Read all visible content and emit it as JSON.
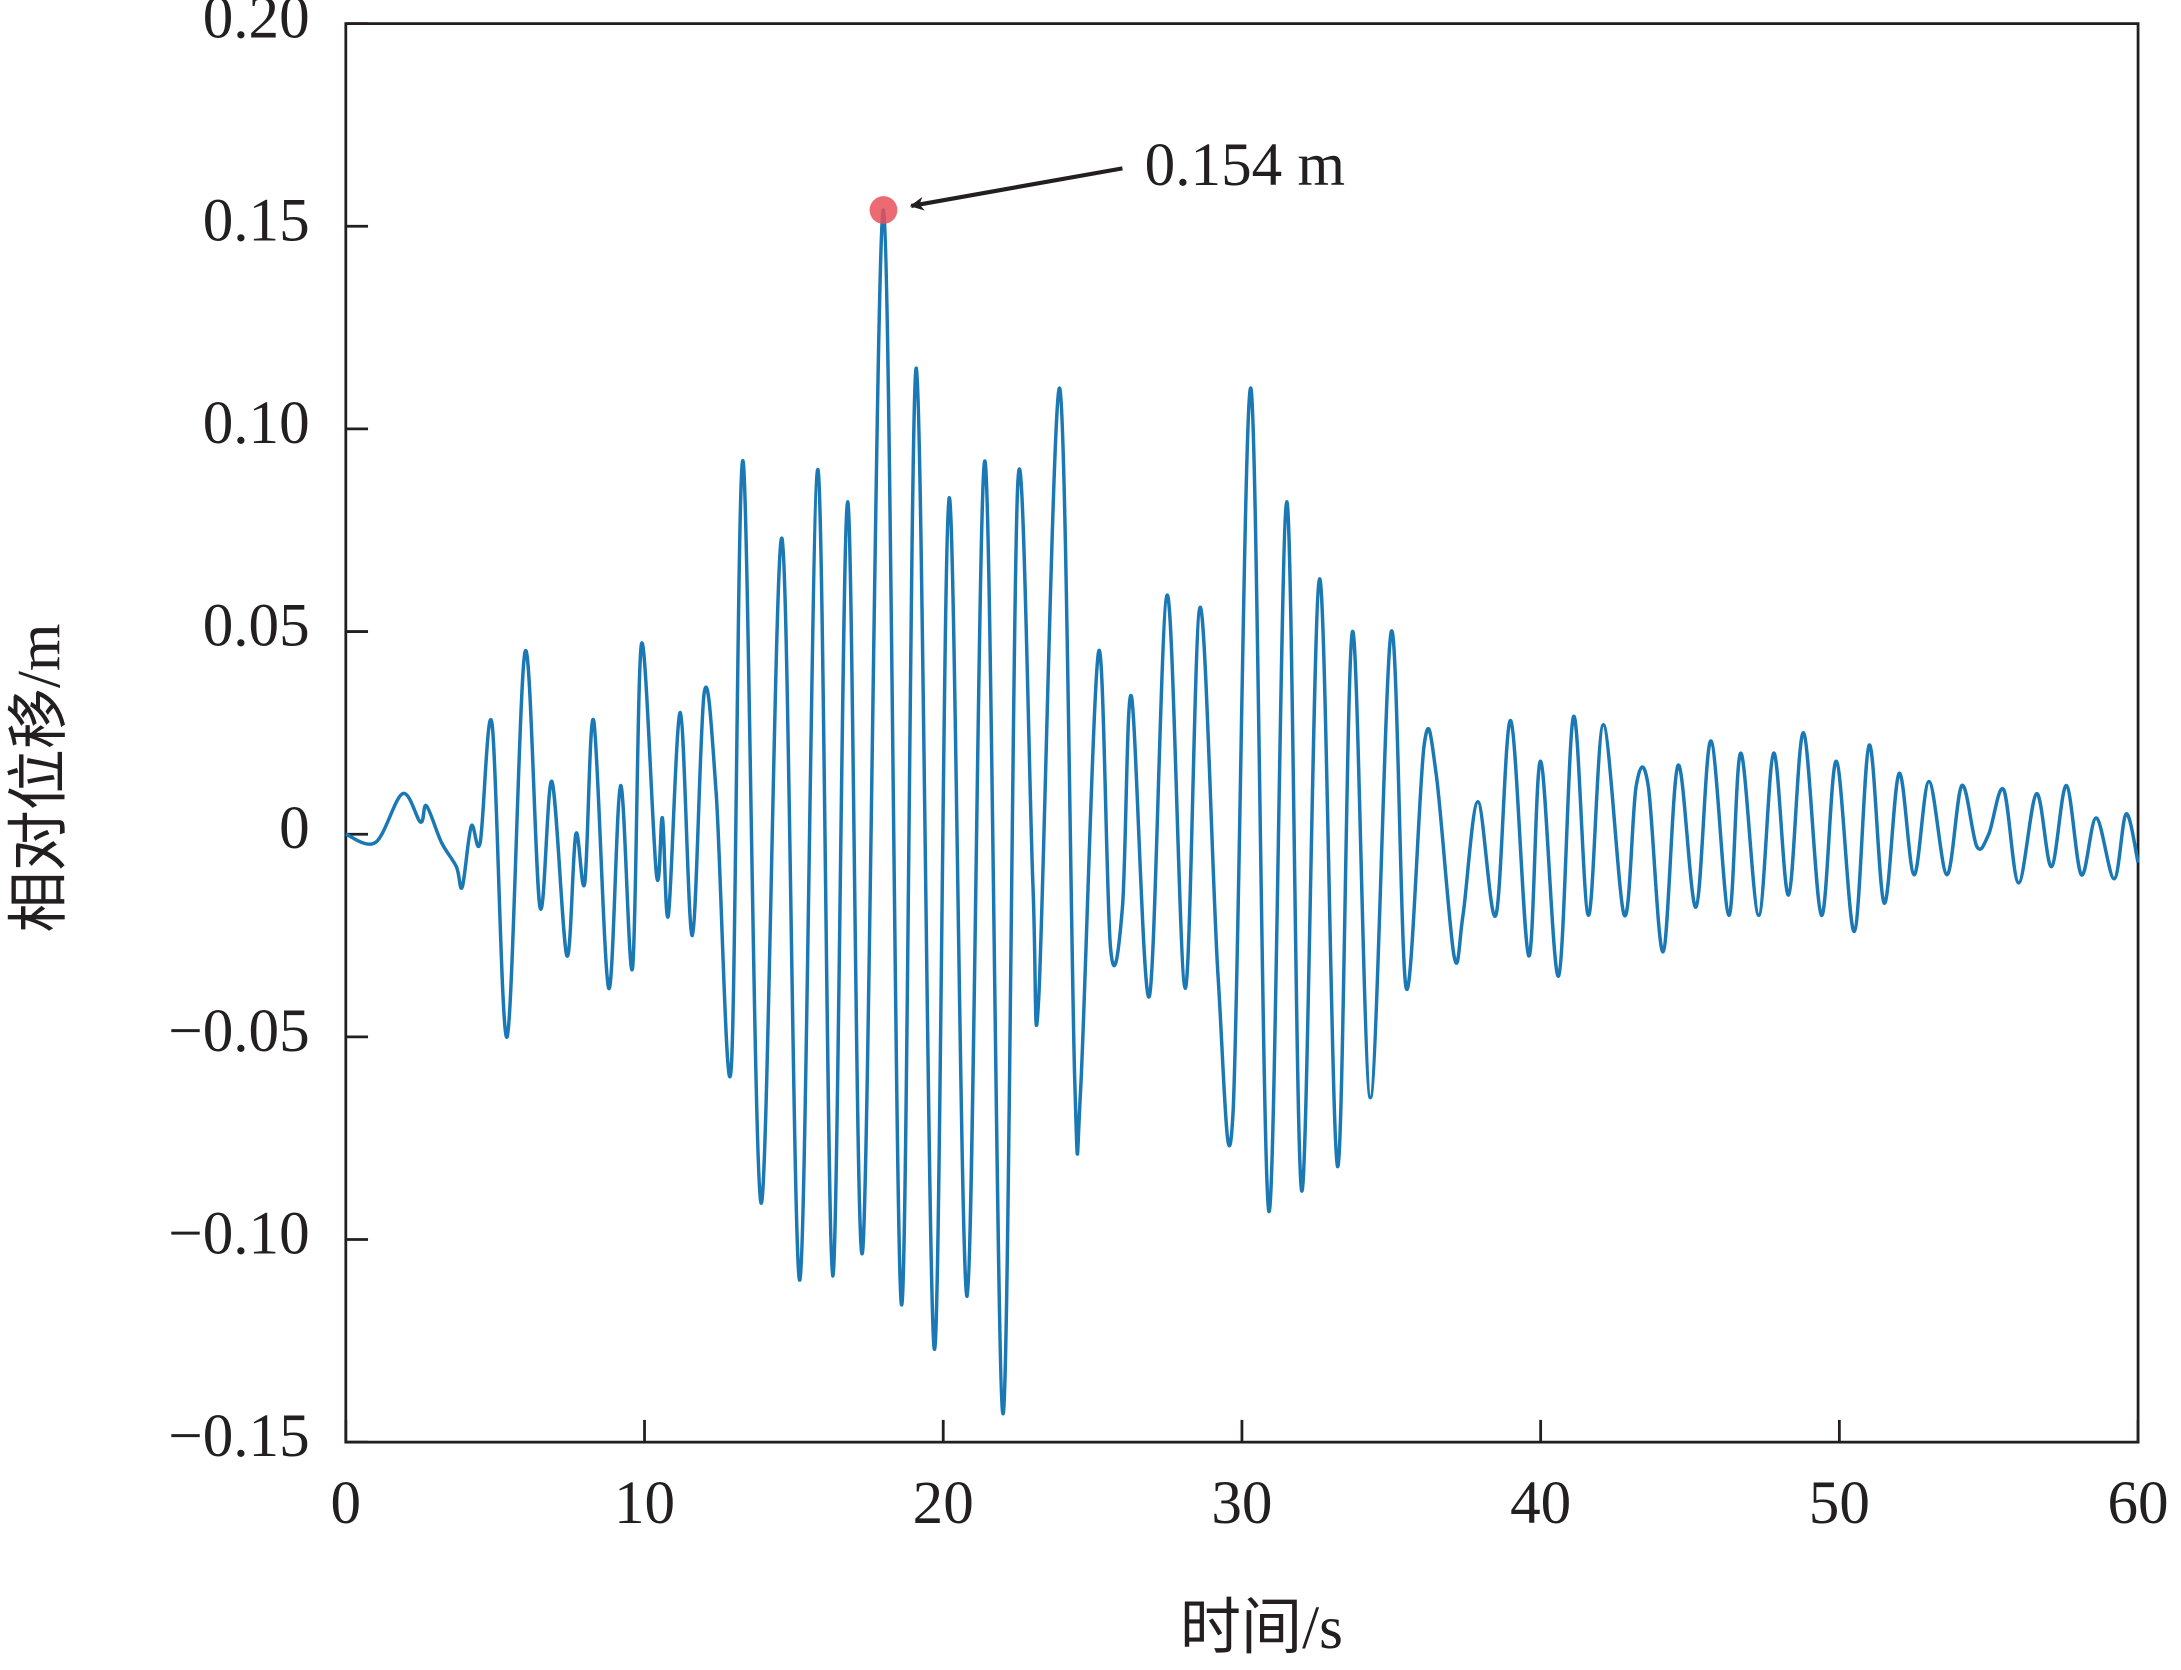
{
  "chart_data": {
    "type": "line",
    "xlabel": "时间/s",
    "ylabel": "相对位移/m",
    "xlim": [
      0,
      60
    ],
    "ylim": [
      -0.15,
      0.2
    ],
    "xticks": [
      0,
      10,
      20,
      30,
      40,
      50,
      60
    ],
    "yticks": [
      {
        "value": -0.15,
        "label": "−0.15"
      },
      {
        "value": -0.1,
        "label": "−0.10"
      },
      {
        "value": -0.05,
        "label": "−0.05"
      },
      0,
      0.05,
      {
        "value": 0.1,
        "label": "0.10"
      },
      0.15,
      {
        "value": 0.2,
        "label": "0.20"
      }
    ],
    "annotations": [
      {
        "text": "0.154 m",
        "x": 18.0,
        "y": 0.154,
        "color": "#e8505b"
      }
    ],
    "x": [
      0,
      1.0,
      1.9,
      2.5,
      2.7,
      3.2,
      3.7,
      3.9,
      4.2,
      4.5,
      4.9,
      5.4,
      6.0,
      6.5,
      6.9,
      7.4,
      7.7,
      8.0,
      8.3,
      8.8,
      9.2,
      9.6,
      9.9,
      10.4,
      10.6,
      10.8,
      11.2,
      11.6,
      12.0,
      12.4,
      12.9,
      13.3,
      13.9,
      14.6,
      15.2,
      15.8,
      16.3,
      16.8,
      17.3,
      18.0,
      18.6,
      19.1,
      19.7,
      20.2,
      20.8,
      21.4,
      22.0,
      22.5,
      23.0,
      23.2,
      23.9,
      24.4,
      24.6,
      25.2,
      25.6,
      26.0,
      26.3,
      26.9,
      27.5,
      28.1,
      28.6,
      29.2,
      29.7,
      30.3,
      30.9,
      31.5,
      32.0,
      32.6,
      33.2,
      33.7,
      34.3,
      35.0,
      35.5,
      36.1,
      36.5,
      37.1,
      37.4,
      37.9,
      38.5,
      39.0,
      39.6,
      40.0,
      40.6,
      41.1,
      41.6,
      42.1,
      42.8,
      43.2,
      43.6,
      44.1,
      44.6,
      45.2,
      45.7,
      46.3,
      46.7,
      47.3,
      47.8,
      48.3,
      48.8,
      49.4,
      49.9,
      50.5,
      51.0,
      51.5,
      52.0,
      52.5,
      53.0,
      53.6,
      54.1,
      54.6,
      55.0,
      55.5,
      56.0,
      56.6,
      57.1,
      57.6,
      58.1,
      58.6,
      59.2,
      59.6,
      60.0
    ],
    "series": [
      {
        "color": "#1a78b4",
        "values": [
          0,
          -0.002,
          0.01,
          0.003,
          0.007,
          -0.002,
          -0.008,
          -0.013,
          0.002,
          -0.002,
          0.027,
          -0.05,
          0.045,
          -0.018,
          0.013,
          -0.03,
          0.0,
          -0.012,
          0.028,
          -0.038,
          0.012,
          -0.033,
          0.047,
          -0.01,
          0.004,
          -0.02,
          0.03,
          -0.025,
          0.035,
          0.01,
          -0.058,
          0.092,
          -0.091,
          0.073,
          -0.11,
          0.09,
          -0.109,
          0.082,
          -0.103,
          0.154,
          -0.116,
          0.115,
          -0.127,
          0.083,
          -0.114,
          0.092,
          -0.143,
          0.087,
          -0.012,
          -0.04,
          0.11,
          -0.06,
          -0.063,
          0.045,
          -0.028,
          -0.018,
          0.034,
          -0.04,
          0.059,
          -0.038,
          0.056,
          -0.035,
          -0.069,
          0.11,
          -0.093,
          0.082,
          -0.088,
          0.063,
          -0.082,
          0.05,
          -0.065,
          0.05,
          -0.038,
          0.022,
          0.015,
          -0.03,
          -0.02,
          0.008,
          -0.02,
          0.028,
          -0.03,
          0.018,
          -0.035,
          0.029,
          -0.02,
          0.027,
          -0.02,
          0.012,
          0.012,
          -0.029,
          0.017,
          -0.018,
          0.023,
          -0.02,
          0.02,
          -0.02,
          0.02,
          -0.015,
          0.025,
          -0.02,
          0.018,
          -0.024,
          0.022,
          -0.017,
          0.015,
          -0.01,
          0.013,
          -0.01,
          0.012,
          -0.003,
          0.0,
          0.011,
          -0.012,
          0.01,
          -0.008,
          0.012,
          -0.01,
          0.004,
          -0.011,
          0.005,
          -0.007
        ]
      }
    ]
  }
}
